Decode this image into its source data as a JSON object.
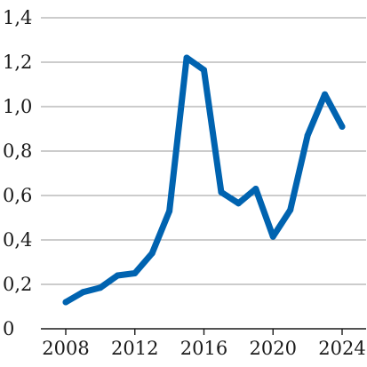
{
  "chart_data": {
    "type": "line",
    "title": "",
    "xlabel": "",
    "ylabel": "",
    "x": [
      2008,
      2009,
      2010,
      2011,
      2012,
      2013,
      2014,
      2015,
      2016,
      2017,
      2018,
      2019,
      2020,
      2021,
      2022,
      2023,
      2024
    ],
    "series": [
      {
        "values": [
          0.12,
          0.165,
          0.185,
          0.24,
          0.25,
          0.34,
          0.53,
          1.22,
          1.165,
          0.615,
          0.565,
          0.63,
          0.415,
          0.535,
          0.87,
          1.055,
          0.91
        ],
        "color": "#0063b0"
      }
    ],
    "xlim": [
      2008,
      2024
    ],
    "ylim": [
      0,
      1.4
    ],
    "x_ticks": [
      2008,
      2012,
      2016,
      2020,
      2024
    ],
    "x_tick_labels": [
      "2008",
      "2012",
      "2016",
      "2020",
      "2024"
    ],
    "y_ticks": [
      0,
      0.2,
      0.4,
      0.6,
      0.8,
      1.0,
      1.2,
      1.4
    ],
    "y_tick_labels": [
      "0",
      "0,2",
      "0,4",
      "0,6",
      "0,8",
      "1,0",
      "1,2",
      "1,4"
    ],
    "grid": true,
    "legend": "none"
  }
}
